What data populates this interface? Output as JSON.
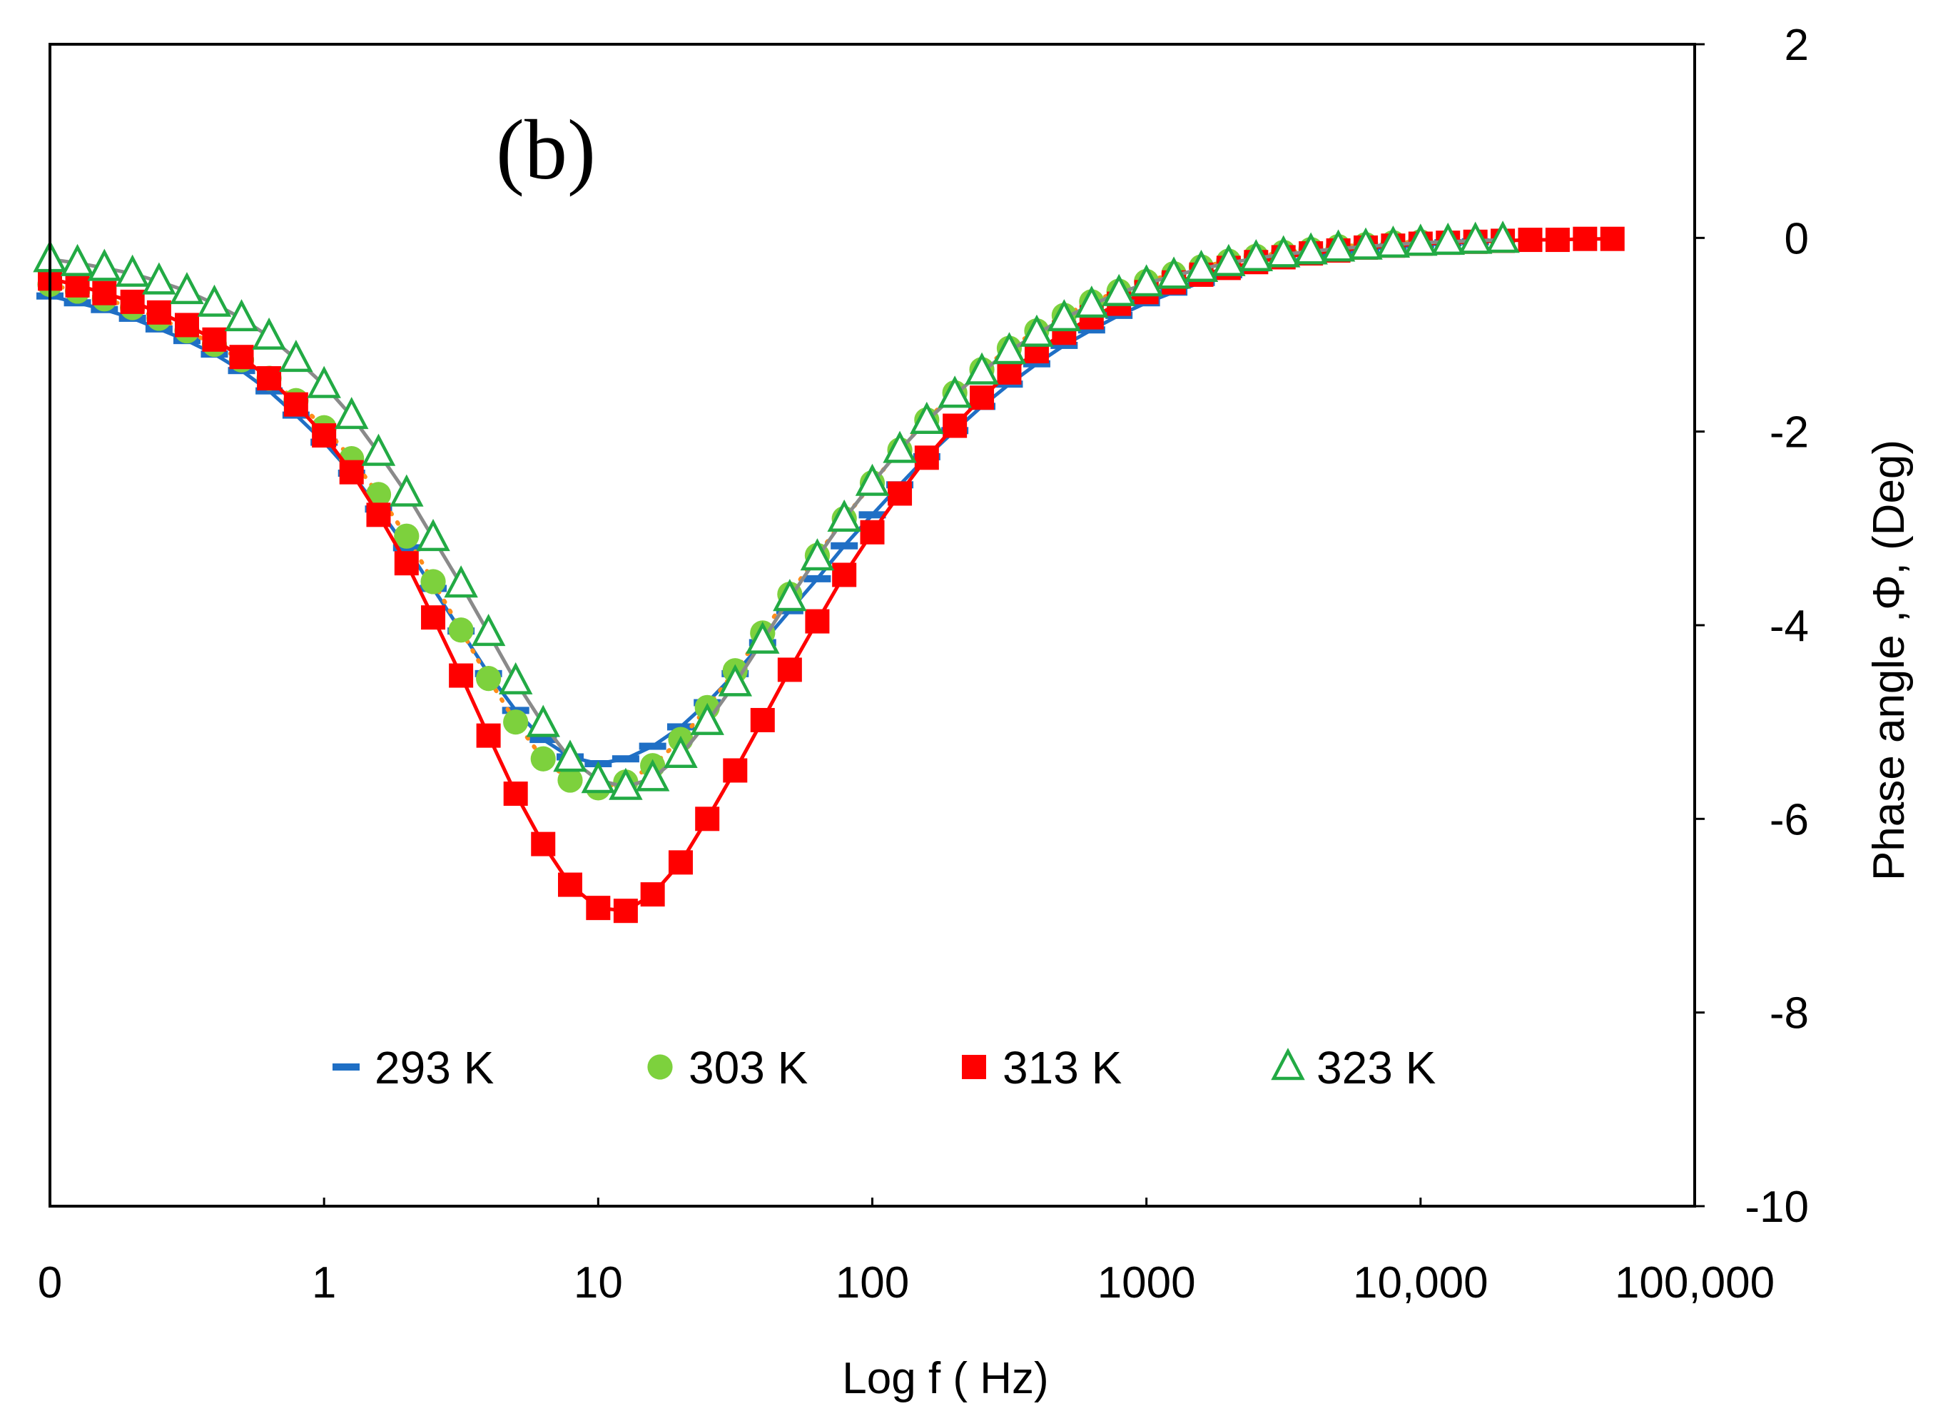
{
  "chart_data": {
    "type": "scatter",
    "panel_label": "(b)",
    "xlabel": "Log f ( Hz)",
    "ylabel": "Phase angle ,Φ, (Deg)",
    "x_scale": "log",
    "xlim": [
      0.1,
      100000
    ],
    "ylim": [
      -10,
      2
    ],
    "x_ticks": [
      {
        "value": 0.1,
        "label": "0"
      },
      {
        "value": 1,
        "label": "1"
      },
      {
        "value": 10,
        "label": "10"
      },
      {
        "value": 100,
        "label": "100"
      },
      {
        "value": 1000,
        "label": "1000"
      },
      {
        "value": 10000,
        "label": "10,000"
      },
      {
        "value": 100000,
        "label": "100,000"
      }
    ],
    "y_ticks": [
      {
        "value": 2,
        "label": "2"
      },
      {
        "value": 0,
        "label": "0"
      },
      {
        "value": -2,
        "label": "-2"
      },
      {
        "value": -4,
        "label": "-4"
      },
      {
        "value": -6,
        "label": "-6"
      },
      {
        "value": -8,
        "label": "-8"
      },
      {
        "value": -10,
        "label": "-10"
      }
    ],
    "legend_position": "bottom-center",
    "series": [
      {
        "name": "293 K",
        "marker": "dash",
        "color": "#1f6fc5",
        "line": "solid",
        "points": [
          [
            0.1,
            -0.6
          ],
          [
            0.126,
            -0.67
          ],
          [
            0.158,
            -0.74
          ],
          [
            0.2,
            -0.83
          ],
          [
            0.25,
            -0.94
          ],
          [
            0.316,
            -1.06
          ],
          [
            0.398,
            -1.2
          ],
          [
            0.5,
            -1.37
          ],
          [
            0.63,
            -1.58
          ],
          [
            0.79,
            -1.83
          ],
          [
            1.0,
            -2.11
          ],
          [
            1.26,
            -2.43
          ],
          [
            1.58,
            -2.8
          ],
          [
            2.0,
            -3.2
          ],
          [
            2.5,
            -3.62
          ],
          [
            3.16,
            -4.06
          ],
          [
            3.98,
            -4.5
          ],
          [
            5.0,
            -4.88
          ],
          [
            6.3,
            -5.18
          ],
          [
            7.9,
            -5.36
          ],
          [
            10.0,
            -5.43
          ],
          [
            12.6,
            -5.38
          ],
          [
            15.8,
            -5.25
          ],
          [
            20.0,
            -5.05
          ],
          [
            25.0,
            -4.8
          ],
          [
            31.6,
            -4.5
          ],
          [
            39.8,
            -4.18
          ],
          [
            50.0,
            -3.85
          ],
          [
            63.0,
            -3.52
          ],
          [
            79.0,
            -3.18
          ],
          [
            100,
            -2.86
          ],
          [
            126,
            -2.55
          ],
          [
            158,
            -2.26
          ],
          [
            200,
            -1.99
          ],
          [
            251,
            -1.74
          ],
          [
            316,
            -1.51
          ],
          [
            398,
            -1.3
          ],
          [
            501,
            -1.11
          ],
          [
            631,
            -0.95
          ],
          [
            794,
            -0.8
          ],
          [
            1000,
            -0.67
          ],
          [
            1259,
            -0.56
          ],
          [
            1585,
            -0.46
          ],
          [
            1995,
            -0.38
          ],
          [
            2512,
            -0.31
          ],
          [
            3162,
            -0.25
          ],
          [
            3981,
            -0.2
          ],
          [
            5012,
            -0.16
          ],
          [
            6310,
            -0.12
          ],
          [
            7943,
            -0.09
          ],
          [
            10000,
            -0.07
          ],
          [
            12589,
            -0.05
          ],
          [
            15849,
            -0.04
          ]
        ]
      },
      {
        "name": "303 K",
        "marker": "circle",
        "color": "#7dd13d",
        "line": "dotted",
        "line_color": "#ff8c1a",
        "points": [
          [
            0.1,
            -0.48
          ],
          [
            0.126,
            -0.55
          ],
          [
            0.158,
            -0.63
          ],
          [
            0.2,
            -0.72
          ],
          [
            0.25,
            -0.83
          ],
          [
            0.316,
            -0.96
          ],
          [
            0.398,
            -1.1
          ],
          [
            0.5,
            -1.26
          ],
          [
            0.63,
            -1.45
          ],
          [
            0.79,
            -1.68
          ],
          [
            1.0,
            -1.96
          ],
          [
            1.26,
            -2.28
          ],
          [
            1.58,
            -2.65
          ],
          [
            2.0,
            -3.08
          ],
          [
            2.5,
            -3.55
          ],
          [
            3.16,
            -4.05
          ],
          [
            3.98,
            -4.55
          ],
          [
            5.0,
            -5.0
          ],
          [
            6.3,
            -5.38
          ],
          [
            7.9,
            -5.6
          ],
          [
            10.0,
            -5.68
          ],
          [
            12.6,
            -5.62
          ],
          [
            15.8,
            -5.45
          ],
          [
            20.0,
            -5.18
          ],
          [
            25.0,
            -4.85
          ],
          [
            31.6,
            -4.47
          ],
          [
            39.8,
            -4.08
          ],
          [
            50.0,
            -3.68
          ],
          [
            63.0,
            -3.28
          ],
          [
            79.0,
            -2.9
          ],
          [
            100,
            -2.53
          ],
          [
            126,
            -2.19
          ],
          [
            158,
            -1.88
          ],
          [
            200,
            -1.6
          ],
          [
            251,
            -1.36
          ],
          [
            316,
            -1.14
          ],
          [
            398,
            -0.96
          ],
          [
            501,
            -0.8
          ],
          [
            631,
            -0.66
          ],
          [
            794,
            -0.55
          ],
          [
            1000,
            -0.45
          ],
          [
            1259,
            -0.37
          ],
          [
            1585,
            -0.3
          ],
          [
            1995,
            -0.24
          ],
          [
            2512,
            -0.19
          ],
          [
            3162,
            -0.15
          ],
          [
            3981,
            -0.12
          ],
          [
            5012,
            -0.09
          ],
          [
            6310,
            -0.07
          ],
          [
            7943,
            -0.05
          ],
          [
            10000,
            -0.04
          ]
        ]
      },
      {
        "name": "313 K",
        "marker": "square",
        "color": "#ff0000",
        "line": "solid",
        "points": [
          [
            0.1,
            -0.42
          ],
          [
            0.126,
            -0.49
          ],
          [
            0.158,
            -0.57
          ],
          [
            0.2,
            -0.66
          ],
          [
            0.25,
            -0.77
          ],
          [
            0.316,
            -0.9
          ],
          [
            0.398,
            -1.05
          ],
          [
            0.5,
            -1.23
          ],
          [
            0.63,
            -1.45
          ],
          [
            0.79,
            -1.72
          ],
          [
            1.0,
            -2.04
          ],
          [
            1.26,
            -2.42
          ],
          [
            1.58,
            -2.86
          ],
          [
            2.0,
            -3.36
          ],
          [
            2.5,
            -3.92
          ],
          [
            3.16,
            -4.52
          ],
          [
            3.98,
            -5.14
          ],
          [
            5.0,
            -5.74
          ],
          [
            6.3,
            -6.26
          ],
          [
            7.9,
            -6.68
          ],
          [
            10.0,
            -6.92
          ],
          [
            12.6,
            -6.95
          ],
          [
            15.8,
            -6.78
          ],
          [
            20.0,
            -6.45
          ],
          [
            25.0,
            -6.0
          ],
          [
            31.6,
            -5.5
          ],
          [
            39.8,
            -4.98
          ],
          [
            50.0,
            -4.46
          ],
          [
            63.0,
            -3.96
          ],
          [
            79.0,
            -3.48
          ],
          [
            100,
            -3.04
          ],
          [
            126,
            -2.64
          ],
          [
            158,
            -2.27
          ],
          [
            200,
            -1.94
          ],
          [
            251,
            -1.65
          ],
          [
            316,
            -1.39
          ],
          [
            398,
            -1.17
          ],
          [
            501,
            -0.98
          ],
          [
            631,
            -0.82
          ],
          [
            794,
            -0.68
          ],
          [
            1000,
            -0.56
          ],
          [
            1259,
            -0.46
          ],
          [
            1585,
            -0.38
          ],
          [
            1995,
            -0.31
          ],
          [
            2512,
            -0.25
          ],
          [
            3162,
            -0.2
          ],
          [
            3981,
            -0.16
          ],
          [
            5012,
            -0.13
          ],
          [
            6310,
            -0.1
          ],
          [
            7943,
            -0.08
          ],
          [
            10000,
            -0.06
          ],
          [
            12589,
            -0.05
          ],
          [
            15849,
            -0.04
          ],
          [
            19953,
            -0.03
          ],
          [
            25119,
            -0.02
          ],
          [
            31623,
            -0.02
          ],
          [
            39811,
            -0.01
          ],
          [
            50119,
            -0.01
          ]
        ]
      },
      {
        "name": "323 K",
        "marker": "triangle",
        "color": "#22aa44",
        "line": "solid",
        "line_color": "#8a8a8a",
        "points": [
          [
            0.1,
            -0.22
          ],
          [
            0.126,
            -0.26
          ],
          [
            0.158,
            -0.31
          ],
          [
            0.2,
            -0.37
          ],
          [
            0.25,
            -0.45
          ],
          [
            0.316,
            -0.55
          ],
          [
            0.398,
            -0.68
          ],
          [
            0.5,
            -0.83
          ],
          [
            0.63,
            -1.02
          ],
          [
            0.79,
            -1.25
          ],
          [
            1.0,
            -1.52
          ],
          [
            1.26,
            -1.84
          ],
          [
            1.58,
            -2.22
          ],
          [
            2.0,
            -2.64
          ],
          [
            2.5,
            -3.1
          ],
          [
            3.16,
            -3.58
          ],
          [
            3.98,
            -4.08
          ],
          [
            5.0,
            -4.58
          ],
          [
            6.3,
            -5.02
          ],
          [
            7.9,
            -5.38
          ],
          [
            10.0,
            -5.6
          ],
          [
            12.6,
            -5.67
          ],
          [
            15.8,
            -5.58
          ],
          [
            20.0,
            -5.34
          ],
          [
            25.0,
            -5.0
          ],
          [
            31.6,
            -4.6
          ],
          [
            39.8,
            -4.16
          ],
          [
            50.0,
            -3.72
          ],
          [
            63.0,
            -3.3
          ],
          [
            79.0,
            -2.9
          ],
          [
            100,
            -2.53
          ],
          [
            126,
            -2.19
          ],
          [
            158,
            -1.89
          ],
          [
            200,
            -1.62
          ],
          [
            251,
            -1.38
          ],
          [
            316,
            -1.17
          ],
          [
            398,
            -0.99
          ],
          [
            501,
            -0.83
          ],
          [
            631,
            -0.69
          ],
          [
            794,
            -0.57
          ],
          [
            1000,
            -0.47
          ],
          [
            1259,
            -0.39
          ],
          [
            1585,
            -0.32
          ],
          [
            1995,
            -0.26
          ],
          [
            2512,
            -0.21
          ],
          [
            3162,
            -0.17
          ],
          [
            3981,
            -0.14
          ],
          [
            5012,
            -0.11
          ],
          [
            6310,
            -0.09
          ],
          [
            7943,
            -0.07
          ],
          [
            10000,
            -0.05
          ],
          [
            12589,
            -0.04
          ],
          [
            15849,
            -0.03
          ],
          [
            19953,
            -0.02
          ]
        ]
      }
    ]
  }
}
